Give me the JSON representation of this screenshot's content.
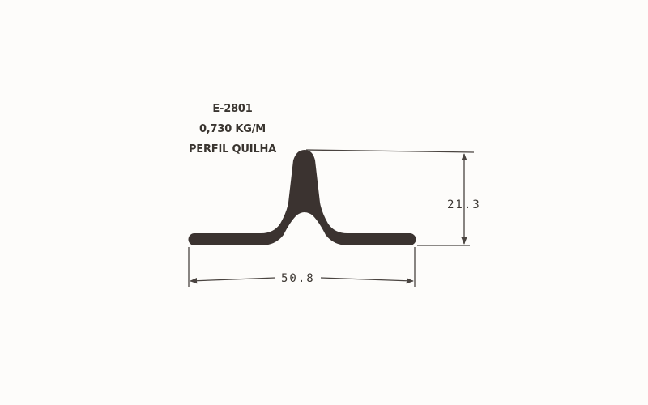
{
  "profile": {
    "code": "E-2801",
    "weight": "0,730 KG/M",
    "name": "PERFIL QUILHA"
  },
  "dimensions": {
    "height": "21.3",
    "width": "50.8"
  },
  "colors": {
    "profile_fill": "#3b3330",
    "line": "#4a4440",
    "text": "#3a3530",
    "background": "#fdfcfa"
  }
}
